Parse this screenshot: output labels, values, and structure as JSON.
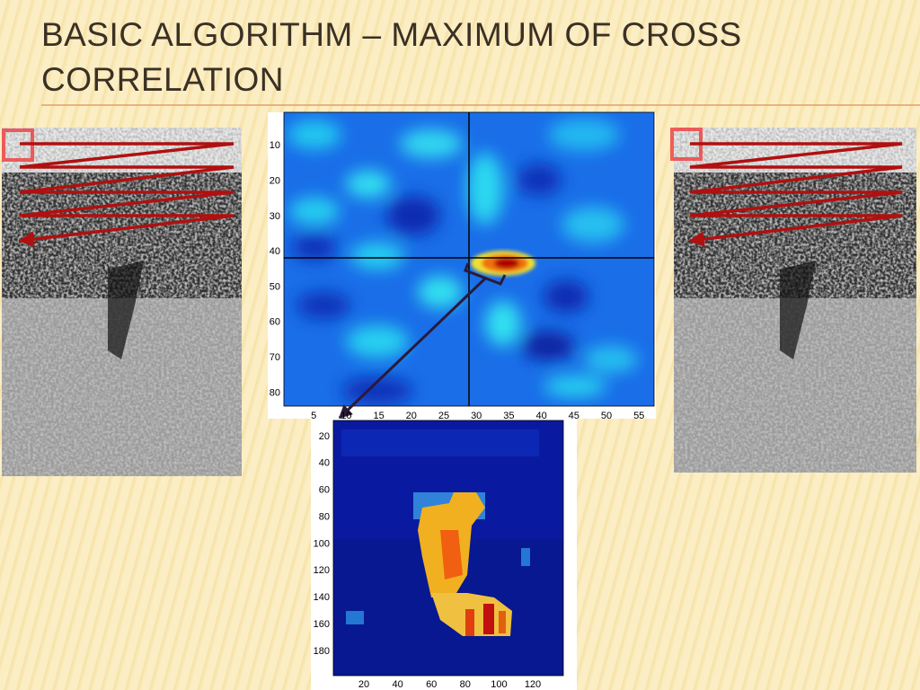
{
  "slide": {
    "title": "BASIC ALGORITHM – MAXIMUM OF CROSS CORRELATION"
  },
  "cross_correlation_plot": {
    "xticks": [
      5,
      10,
      15,
      20,
      25,
      30,
      35,
      40,
      45,
      50,
      55
    ],
    "yticks": [
      10,
      20,
      30,
      40,
      50,
      60,
      70,
      80
    ]
  },
  "result_plot": {
    "xticks": [
      20,
      40,
      60,
      80,
      100,
      120
    ],
    "yticks": [
      20,
      40,
      60,
      80,
      100,
      120,
      140,
      160,
      180
    ]
  }
}
